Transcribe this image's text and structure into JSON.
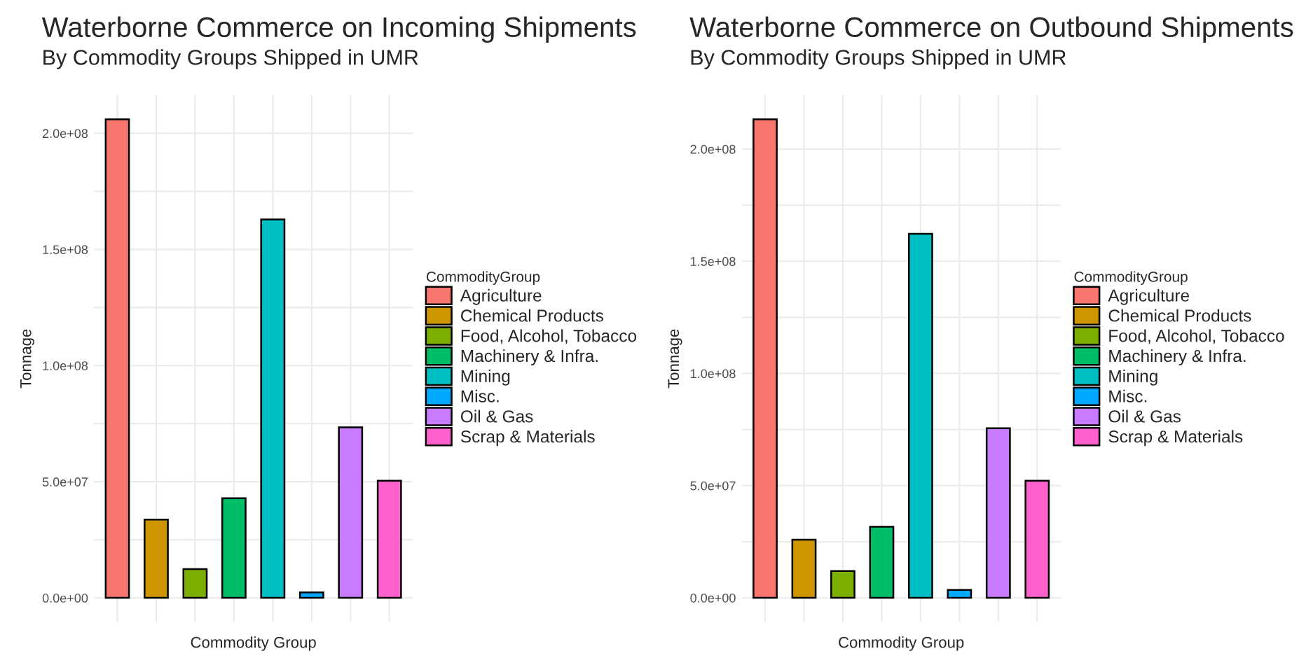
{
  "chart_data": [
    {
      "type": "bar",
      "title": "Waterborne Commerce on Incoming Shipments",
      "subtitle": "By Commodity Groups Shipped in UMR",
      "xlabel": "Commodity Group",
      "ylabel": "Tonnage",
      "legend_title": "CommodityGroup",
      "categories": [
        null,
        null,
        null,
        null,
        null,
        null,
        null,
        null
      ],
      "series": [
        {
          "name": "Agriculture",
          "color": "#f8766d",
          "values": [
            206000000,
            null,
            null,
            null,
            null,
            null,
            null,
            null
          ]
        },
        {
          "name": "Chemical Products",
          "color": "#cd9600",
          "values": [
            null,
            33700000,
            null,
            null,
            null,
            null,
            null,
            null
          ]
        },
        {
          "name": "Food, Alcohol, Tobacco",
          "color": "#7cae00",
          "values": [
            null,
            null,
            12400000,
            null,
            null,
            null,
            null,
            null
          ]
        },
        {
          "name": "Machinery & Infra.",
          "color": "#00be67",
          "values": [
            null,
            null,
            null,
            42900000,
            null,
            null,
            null,
            null
          ]
        },
        {
          "name": "Mining",
          "color": "#00bfc4",
          "values": [
            null,
            null,
            null,
            null,
            162900000,
            null,
            null,
            null
          ]
        },
        {
          "name": "Misc.",
          "color": "#00a9ff",
          "values": [
            null,
            null,
            null,
            null,
            null,
            2400000,
            null,
            null
          ]
        },
        {
          "name": "Oil & Gas",
          "color": "#c77cff",
          "values": [
            null,
            null,
            null,
            null,
            null,
            null,
            73400000,
            null
          ]
        },
        {
          "name": "Scrap & Materials",
          "color": "#ff61cc",
          "values": [
            null,
            null,
            null,
            null,
            null,
            null,
            null,
            50400000
          ]
        }
      ],
      "ylim": [
        -10300000,
        216300000
      ],
      "yticks": [
        {
          "value": 0,
          "label": "0.0e+00"
        },
        {
          "value": 25000000,
          "label": null
        },
        {
          "value": 50000000,
          "label": "5.0e+07"
        },
        {
          "value": 75000000,
          "label": null
        },
        {
          "value": 100000000,
          "label": "1.0e+08"
        },
        {
          "value": 125000000,
          "label": null
        },
        {
          "value": 150000000,
          "label": "1.5e+08"
        },
        {
          "value": 175000000,
          "label": null
        },
        {
          "value": 200000000,
          "label": "2.0e+08"
        }
      ],
      "tick_labels": "y",
      "grid": true,
      "legend": "right"
    },
    {
      "type": "bar",
      "title": "Waterborne Commerce on Outbound Shipments",
      "subtitle": "By Commodity Groups Shipped in UMR",
      "xlabel": "Commodity Group",
      "ylabel": "Tonnage",
      "legend_title": "CommodityGroup",
      "categories": [
        null,
        null,
        null,
        null,
        null,
        null,
        null,
        null
      ],
      "series": [
        {
          "name": "Agriculture",
          "color": "#f8766d",
          "values": [
            213200000,
            null,
            null,
            null,
            null,
            null,
            null,
            null
          ]
        },
        {
          "name": "Chemical Products",
          "color": "#cd9600",
          "values": [
            null,
            25900000,
            null,
            null,
            null,
            null,
            null,
            null
          ]
        },
        {
          "name": "Food, Alcohol, Tobacco",
          "color": "#7cae00",
          "values": [
            null,
            null,
            11900000,
            null,
            null,
            null,
            null,
            null
          ]
        },
        {
          "name": "Machinery & Infra.",
          "color": "#00be67",
          "values": [
            null,
            null,
            null,
            31700000,
            null,
            null,
            null,
            null
          ]
        },
        {
          "name": "Mining",
          "color": "#00bfc4",
          "values": [
            null,
            null,
            null,
            null,
            162200000,
            null,
            null,
            null
          ]
        },
        {
          "name": "Misc.",
          "color": "#00a9ff",
          "values": [
            null,
            null,
            null,
            null,
            null,
            3500000,
            null,
            null
          ]
        },
        {
          "name": "Oil & Gas",
          "color": "#c77cff",
          "values": [
            null,
            null,
            null,
            null,
            null,
            null,
            75600000,
            null
          ]
        },
        {
          "name": "Scrap & Materials",
          "color": "#ff61cc",
          "values": [
            null,
            null,
            null,
            null,
            null,
            null,
            null,
            52200000
          ]
        }
      ],
      "ylim": [
        -10700000,
        223900000
      ],
      "yticks": [
        {
          "value": 0,
          "label": "0.0e+00"
        },
        {
          "value": 25000000,
          "label": null
        },
        {
          "value": 50000000,
          "label": "5.0e+07"
        },
        {
          "value": 75000000,
          "label": null
        },
        {
          "value": 100000000,
          "label": "1.0e+08"
        },
        {
          "value": 125000000,
          "label": null
        },
        {
          "value": 150000000,
          "label": "1.5e+08"
        },
        {
          "value": 175000000,
          "label": null
        },
        {
          "value": 200000000,
          "label": "2.0e+08"
        }
      ],
      "tick_labels": "y",
      "grid": true,
      "legend": "right"
    }
  ]
}
